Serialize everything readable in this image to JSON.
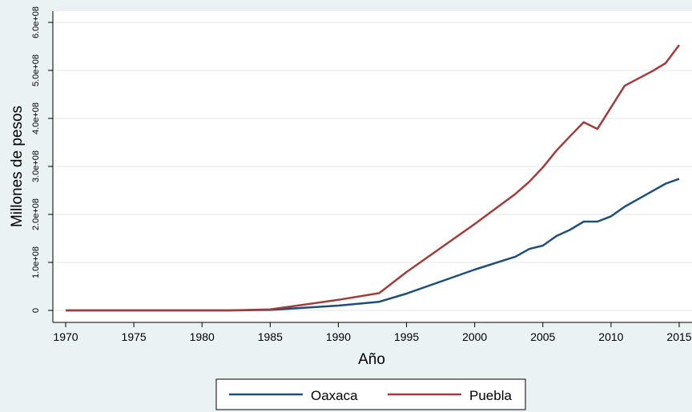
{
  "chart_data": {
    "type": "line",
    "title": "",
    "xlabel": "Año",
    "ylabel": "Millones de pesos",
    "xlim": [
      1970,
      2015
    ],
    "ylim": [
      0,
      600000000
    ],
    "x_ticks": [
      1970,
      1975,
      1980,
      1985,
      1990,
      1995,
      2000,
      2005,
      2010,
      2015
    ],
    "y_ticks": [
      {
        "value": 0,
        "label": "0"
      },
      {
        "value": 100000000,
        "label": "1.0e+08"
      },
      {
        "value": 200000000,
        "label": "2.0e+08"
      },
      {
        "value": 300000000,
        "label": "3.0e+08"
      },
      {
        "value": 400000000,
        "label": "4.0e+08"
      },
      {
        "value": 500000000,
        "label": "5.0e+08"
      },
      {
        "value": 600000000,
        "label": "6.0e+08"
      }
    ],
    "grid": true,
    "legend_position": "bottom",
    "series": [
      {
        "name": "Oaxaca",
        "color": "#1f4e79",
        "points": [
          [
            1970,
            0
          ],
          [
            1982,
            0
          ],
          [
            1985,
            1000000
          ],
          [
            1990,
            10000000
          ],
          [
            1993,
            18000000
          ],
          [
            1995,
            35000000
          ],
          [
            2000,
            85000000
          ],
          [
            2003,
            112000000
          ],
          [
            2004,
            128000000
          ],
          [
            2005,
            135000000
          ],
          [
            2006,
            155000000
          ],
          [
            2007,
            168000000
          ],
          [
            2008,
            185000000
          ],
          [
            2009,
            185000000
          ],
          [
            2010,
            196000000
          ],
          [
            2011,
            216000000
          ],
          [
            2012,
            232000000
          ],
          [
            2013,
            248000000
          ],
          [
            2014,
            264000000
          ],
          [
            2015,
            274000000
          ]
        ]
      },
      {
        "name": "Puebla",
        "color": "#a03c3c",
        "points": [
          [
            1970,
            0
          ],
          [
            1982,
            0
          ],
          [
            1985,
            2000000
          ],
          [
            1990,
            22000000
          ],
          [
            1993,
            36000000
          ],
          [
            1995,
            80000000
          ],
          [
            2000,
            180000000
          ],
          [
            2003,
            243000000
          ],
          [
            2004,
            268000000
          ],
          [
            2005,
            298000000
          ],
          [
            2006,
            333000000
          ],
          [
            2007,
            363000000
          ],
          [
            2008,
            392000000
          ],
          [
            2009,
            378000000
          ],
          [
            2010,
            423000000
          ],
          [
            2011,
            468000000
          ],
          [
            2012,
            483000000
          ],
          [
            2013,
            498000000
          ],
          [
            2014,
            515000000
          ],
          [
            2015,
            553000000
          ]
        ]
      }
    ]
  }
}
